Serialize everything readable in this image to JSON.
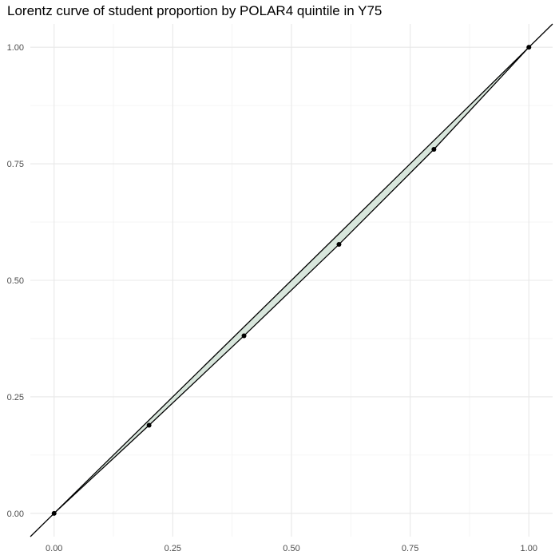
{
  "title": "Lorentz curve of student proportion by POLAR4 quintile in Y75",
  "chart_data": {
    "type": "line",
    "title": "Lorentz curve of student proportion by POLAR4 quintile in Y75",
    "xlabel": "",
    "ylabel": "",
    "xlim": [
      -0.05,
      1.05
    ],
    "ylim": [
      -0.05,
      1.05
    ],
    "x_ticks": [
      "0.00",
      "0.25",
      "0.50",
      "0.75",
      "1.00"
    ],
    "y_ticks": [
      "0.00",
      "0.25",
      "0.50",
      "0.75",
      "1.00"
    ],
    "grid": true,
    "series": [
      {
        "x": [
          0.0,
          0.2,
          0.4,
          0.6,
          0.8,
          1.0
        ],
        "values": [
          0.0,
          0.189,
          0.381,
          0.577,
          0.781,
          1.0
        ]
      }
    ],
    "equality_line": {
      "x": [
        -0.05,
        1.05
      ],
      "values": [
        -0.05,
        1.05
      ]
    },
    "colors": {
      "fill": "#d8e6dc",
      "line": "#000000",
      "grid_major": "#e8e8e8",
      "grid_minor": "#f3f3f3",
      "tick_text": "#4d4d4d"
    }
  }
}
